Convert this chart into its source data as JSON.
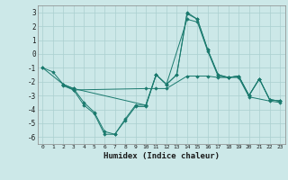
{
  "background_color": "#cce8e8",
  "grid_color": "#aacfcf",
  "line_color": "#1a7a6e",
  "marker_color": "#1a7a6e",
  "xlabel": "Humidex (Indice chaleur)",
  "xlim": [
    -0.5,
    23.5
  ],
  "ylim": [
    -6.5,
    3.5
  ],
  "yticks": [
    -6,
    -5,
    -4,
    -3,
    -2,
    -1,
    0,
    1,
    2,
    3
  ],
  "xticks": [
    0,
    1,
    2,
    3,
    4,
    5,
    6,
    7,
    8,
    9,
    10,
    11,
    12,
    13,
    14,
    15,
    16,
    17,
    18,
    19,
    20,
    21,
    22,
    23
  ],
  "series": [
    {
      "x": [
        0,
        1,
        2,
        3,
        4,
        5,
        6,
        7,
        8,
        9,
        10,
        11,
        12,
        13,
        14,
        15,
        16,
        17,
        18,
        19,
        20,
        21,
        22,
        23
      ],
      "y": [
        -1.0,
        -1.3,
        -2.2,
        -2.6,
        -3.7,
        -4.3,
        -5.8,
        -5.8,
        -4.8,
        -3.8,
        -3.8,
        -1.5,
        -2.2,
        -1.5,
        3.0,
        2.5,
        0.3,
        -1.5,
        -1.7,
        -1.6,
        -3.0,
        -1.8,
        -3.3,
        -3.4
      ]
    },
    {
      "x": [
        0,
        2,
        3,
        4,
        5,
        6,
        7,
        8,
        9,
        10,
        11,
        12,
        13,
        14,
        15,
        16,
        17,
        18,
        19,
        20,
        21,
        22,
        23
      ],
      "y": [
        -1.0,
        -2.2,
        -2.5,
        -3.5,
        -4.2,
        -5.6,
        -5.8,
        -4.7,
        -3.7,
        -3.7,
        -1.5,
        -2.2,
        -1.5,
        2.9,
        2.5,
        0.3,
        -1.5,
        -1.7,
        -1.6,
        -3.0,
        -1.8,
        -3.3,
        -3.4
      ]
    },
    {
      "x": [
        2,
        3,
        10,
        11,
        12,
        14,
        15,
        16,
        17,
        18,
        19,
        20,
        21,
        22,
        23
      ],
      "y": [
        -2.2,
        -2.5,
        -3.7,
        -1.5,
        -2.2,
        2.5,
        2.3,
        0.2,
        -1.6,
        -1.7,
        -1.6,
        -3.0,
        -1.8,
        -3.3,
        -3.4
      ]
    },
    {
      "x": [
        2,
        3,
        10,
        11,
        12,
        14,
        15,
        16,
        17,
        18,
        19,
        20,
        22,
        23
      ],
      "y": [
        -2.3,
        -2.6,
        -2.5,
        -2.5,
        -2.5,
        -1.6,
        -1.6,
        -1.6,
        -1.7,
        -1.7,
        -1.7,
        -3.1,
        -3.4,
        -3.5
      ]
    }
  ]
}
